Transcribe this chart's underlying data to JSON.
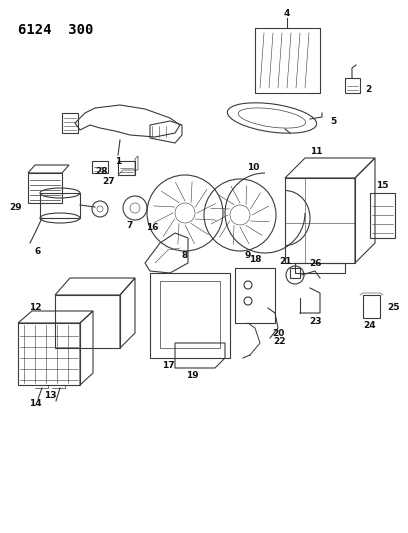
{
  "title": "6124 300",
  "bg_color": "#ffffff",
  "fig_w": 4.08,
  "fig_h": 5.33,
  "dpi": 100,
  "lw": 0.8,
  "color": "#3a3a3a",
  "label_fs": 6.5,
  "label_fw": "bold",
  "label_color": "#111111"
}
